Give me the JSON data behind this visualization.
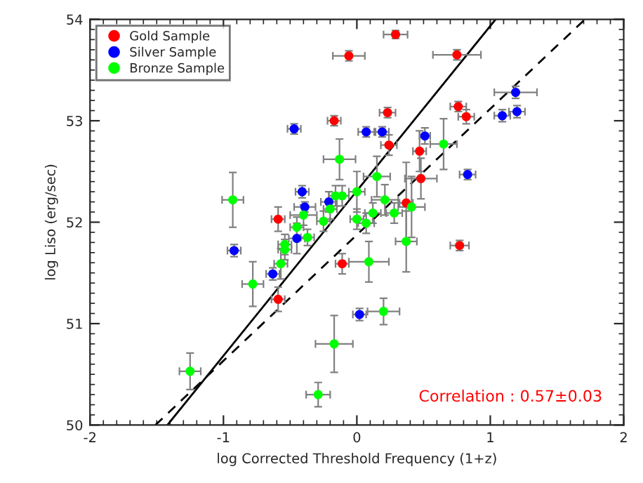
{
  "chart_data": {
    "type": "scatter",
    "xlabel": "log Corrected Threshold Frequency (1+z)",
    "ylabel": "log Liso (erg/sec)",
    "xlim": [
      -2,
      2
    ],
    "ylim": [
      50,
      54
    ],
    "xticks": [
      -2,
      -1,
      0,
      1,
      2
    ],
    "yticks": [
      50,
      51,
      52,
      53,
      54
    ],
    "grid": false,
    "legend": "top left",
    "annotations": [
      "Correlation : 0.57±0.03"
    ],
    "series": [
      {
        "name": "Gold Sample",
        "color": "#ff0000",
        "marker": "circle",
        "x": [
          -0.06,
          0.29,
          0.75,
          -0.17,
          0.23,
          0.76,
          0.82,
          0.24,
          0.47,
          0.48,
          0.37,
          -0.59,
          -0.11,
          -0.59,
          0.77
        ],
        "values": [
          53.64,
          53.85,
          53.65,
          53.0,
          53.08,
          53.14,
          53.04,
          52.76,
          52.7,
          52.43,
          52.19,
          52.03,
          51.59,
          51.24,
          51.77
        ],
        "xerrors": [
          0.12,
          0.09,
          0.18,
          0.05,
          0.06,
          0.06,
          0.06,
          0.06,
          0.05,
          0.12,
          0.05,
          0.05,
          0.05,
          0.05,
          0.07
        ],
        "errors": [
          0.05,
          0.04,
          0.05,
          0.05,
          0.05,
          0.05,
          0.07,
          0.1,
          0.2,
          0.2,
          0.4,
          0.12,
          0.1,
          0.12,
          0.05
        ]
      },
      {
        "name": "Silver Sample",
        "color": "#0000ff",
        "marker": "circle",
        "x": [
          -0.47,
          0.07,
          0.19,
          0.51,
          1.19,
          1.09,
          1.2,
          0.83,
          -0.41,
          -0.21,
          -0.39,
          -0.45,
          -0.92,
          -0.63,
          0.02
        ],
        "values": [
          52.92,
          52.89,
          52.89,
          52.85,
          53.28,
          53.05,
          53.09,
          52.47,
          52.3,
          52.2,
          52.15,
          51.84,
          51.72,
          51.49,
          51.09
        ],
        "xerrors": [
          0.05,
          0.06,
          0.05,
          0.04,
          0.16,
          0.06,
          0.06,
          0.06,
          0.05,
          0.06,
          0.08,
          0.06,
          0.05,
          0.05,
          0.05
        ],
        "errors": [
          0.05,
          0.05,
          0.05,
          0.08,
          0.06,
          0.06,
          0.06,
          0.05,
          0.06,
          0.1,
          0.05,
          0.15,
          0.06,
          0.06,
          0.06
        ]
      },
      {
        "name": "Bronze Sample",
        "color": "#00ff00",
        "marker": "circle",
        "x": [
          -0.93,
          -0.13,
          -0.16,
          -0.11,
          0.0,
          0.15,
          0.21,
          0.12,
          0.28,
          0.41,
          0.65,
          0.0,
          0.07,
          -0.4,
          -0.25,
          -0.2,
          -0.45,
          -0.37,
          -0.54,
          -0.54,
          -0.57,
          -0.78,
          -0.17,
          -1.25,
          -0.29,
          0.37,
          0.09,
          0.2
        ],
        "values": [
          52.22,
          52.62,
          52.26,
          52.26,
          52.3,
          52.45,
          52.22,
          52.09,
          52.09,
          52.15,
          52.77,
          52.03,
          51.99,
          52.07,
          52.01,
          52.13,
          51.95,
          51.85,
          51.78,
          51.73,
          51.59,
          51.39,
          50.8,
          50.53,
          50.3,
          51.81,
          51.61,
          51.12
        ],
        "xerrors": [
          0.08,
          0.12,
          0.05,
          0.05,
          0.06,
          0.1,
          0.1,
          0.06,
          0.06,
          0.1,
          0.1,
          0.05,
          0.06,
          0.1,
          0.05,
          0.05,
          0.05,
          0.05,
          0.05,
          0.05,
          0.05,
          0.08,
          0.14,
          0.08,
          0.09,
          0.08,
          0.15,
          0.12
        ],
        "errors": [
          0.27,
          0.2,
          0.1,
          0.1,
          0.2,
          0.2,
          0.15,
          0.1,
          0.1,
          0.3,
          0.25,
          0.1,
          0.1,
          0.1,
          0.1,
          0.1,
          0.1,
          0.08,
          0.1,
          0.1,
          0.15,
          0.22,
          0.28,
          0.18,
          0.12,
          0.3,
          0.2,
          0.13
        ]
      },
      {
        "type": "line",
        "color": "#000000",
        "line_style": "solid",
        "marker": "none",
        "x": [
          -1.42,
          1.04
        ],
        "values": [
          50,
          54
        ]
      },
      {
        "type": "line",
        "color": "#000000",
        "line_style": "dashed",
        "marker": "none",
        "x": [
          -1.51,
          1.71
        ],
        "values": [
          50,
          54
        ]
      }
    ]
  }
}
